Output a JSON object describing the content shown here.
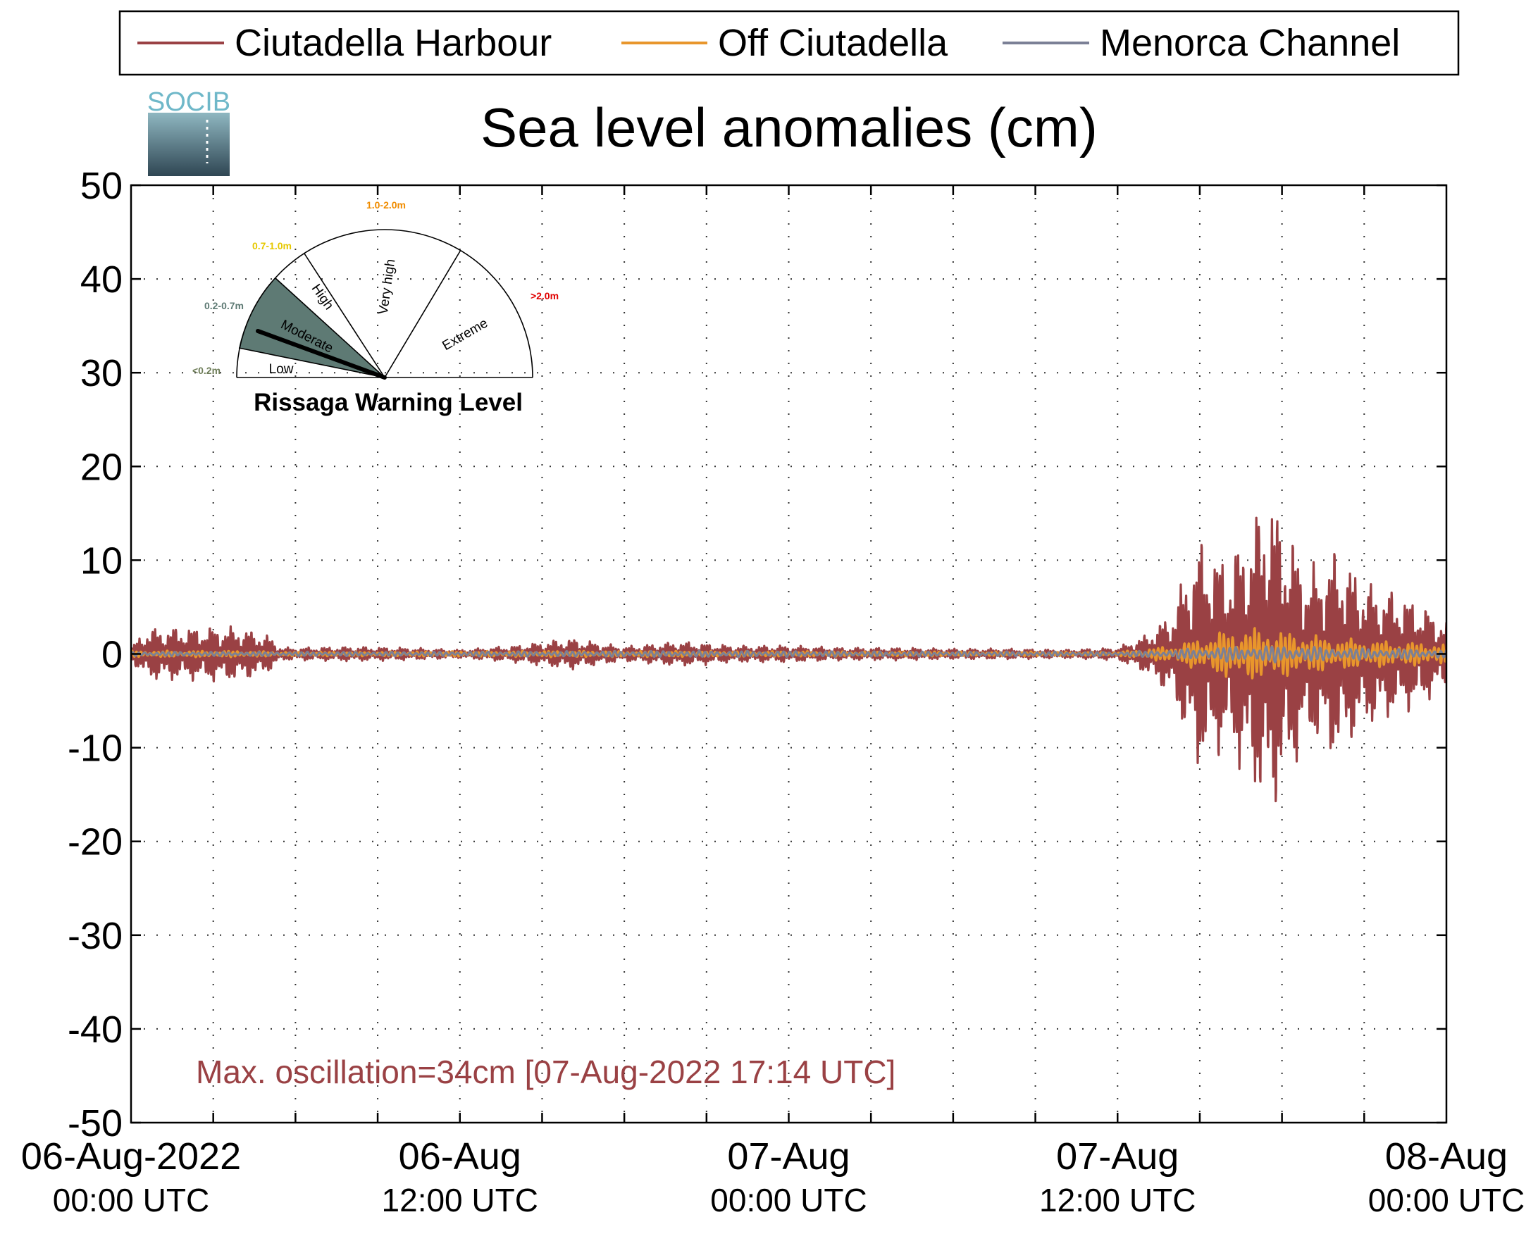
{
  "colors": {
    "harbour": "#9a4144",
    "off": "#e8962c",
    "channel": "#7b8096",
    "grid": "#333333",
    "moderate_fill": "#5e7a74",
    "level_low": "#6e7d58",
    "level_moderate": "#5e7a74",
    "level_high": "#e6c800",
    "level_very_high": "#f08c00",
    "level_extreme": "#e00000"
  },
  "legend": {
    "items": [
      {
        "label": "Ciutadella Harbour",
        "color": "#9a4144"
      },
      {
        "label": "Off Ciutadella",
        "color": "#e8962c"
      },
      {
        "label": "Menorca Channel",
        "color": "#7b8096"
      }
    ]
  },
  "logo": {
    "text": "SOCIB"
  },
  "gauge": {
    "title": "Rissaga Warning Level",
    "active_level": "Moderate",
    "sectors": [
      {
        "label": "Low",
        "range": "<0.2m",
        "color": "#6e7d58"
      },
      {
        "label": "Moderate",
        "range": "0.2-0.7m",
        "color": "#5e7a74"
      },
      {
        "label": "High",
        "range": "0.7-1.0m",
        "color": "#e6c800"
      },
      {
        "label": "Very high",
        "range": "1.0-2.0m",
        "color": "#f08c00"
      },
      {
        "label": "Extreme",
        "range": ">2.0m",
        "color": "#e00000"
      }
    ]
  },
  "annotation": "Max. oscillation=34cm [07-Aug-2022 17:14 UTC]",
  "chart_data": {
    "type": "line",
    "title": "Sea level anomalies (cm)",
    "xlabel": "",
    "ylabel": "",
    "xlim": [
      0,
      48
    ],
    "x_unit": "hours since 06-Aug-2022 00:00 UTC",
    "ylim": [
      -50,
      50
    ],
    "yticks": [
      50,
      40,
      30,
      20,
      10,
      0,
      -10,
      -20,
      -30,
      -40,
      -50
    ],
    "xtick_labels": [
      {
        "x": 0,
        "line1": "06-Aug-2022",
        "line2": "00:00 UTC"
      },
      {
        "x": 12,
        "line1": "06-Aug",
        "line2": "12:00 UTC"
      },
      {
        "x": 24,
        "line1": "07-Aug",
        "line2": "00:00 UTC"
      },
      {
        "x": 36,
        "line1": "07-Aug",
        "line2": "12:00 UTC"
      },
      {
        "x": 48,
        "line1": "08-Aug",
        "line2": "00:00 UTC"
      }
    ],
    "grid": true,
    "legend_position": "top",
    "series": [
      {
        "name": "Ciutadella Harbour",
        "envelope": [
          [
            0,
            0.6
          ],
          [
            0.5,
            2.3
          ],
          [
            1,
            2.5
          ],
          [
            2,
            2.5
          ],
          [
            3,
            2.6
          ],
          [
            4,
            2.5
          ],
          [
            5,
            1.8
          ],
          [
            5.5,
            0.6
          ],
          [
            6,
            0.6
          ],
          [
            8,
            0.7
          ],
          [
            10,
            0.6
          ],
          [
            12,
            0.4
          ],
          [
            14,
            0.8
          ],
          [
            16,
            1.5
          ],
          [
            18,
            0.7
          ],
          [
            20,
            1.2
          ],
          [
            22,
            0.8
          ],
          [
            24,
            0.8
          ],
          [
            26,
            0.6
          ],
          [
            28,
            0.6
          ],
          [
            30,
            0.5
          ],
          [
            32,
            0.5
          ],
          [
            34,
            0.4
          ],
          [
            36,
            0.6
          ],
          [
            37,
            1.8
          ],
          [
            38,
            4
          ],
          [
            38.5,
            8
          ],
          [
            39,
            11
          ],
          [
            40,
            9
          ],
          [
            41,
            13
          ],
          [
            41.5,
            16
          ],
          [
            42,
            13
          ],
          [
            43,
            8
          ],
          [
            44,
            10
          ],
          [
            45,
            7
          ],
          [
            46,
            6
          ],
          [
            47,
            5
          ],
          [
            48,
            3
          ]
        ]
      },
      {
        "name": "Off Ciutadella",
        "envelope": [
          [
            0,
            0.3
          ],
          [
            4,
            0.3
          ],
          [
            6,
            0.2
          ],
          [
            16,
            0.3
          ],
          [
            36,
            0.2
          ],
          [
            38,
            0.8
          ],
          [
            39,
            1.5
          ],
          [
            40,
            2.3
          ],
          [
            41,
            2.5
          ],
          [
            42,
            2.2
          ],
          [
            44,
            1.5
          ],
          [
            46,
            1.2
          ],
          [
            48,
            1.0
          ]
        ]
      },
      {
        "name": "Menorca Channel",
        "envelope": [
          [
            0,
            0.2
          ],
          [
            10,
            0.2
          ],
          [
            20,
            0.3
          ],
          [
            36,
            0.2
          ],
          [
            38,
            0.4
          ],
          [
            40,
            0.7
          ],
          [
            42,
            0.8
          ],
          [
            44,
            0.6
          ],
          [
            46,
            0.5
          ],
          [
            48,
            0.4
          ]
        ]
      }
    ]
  }
}
